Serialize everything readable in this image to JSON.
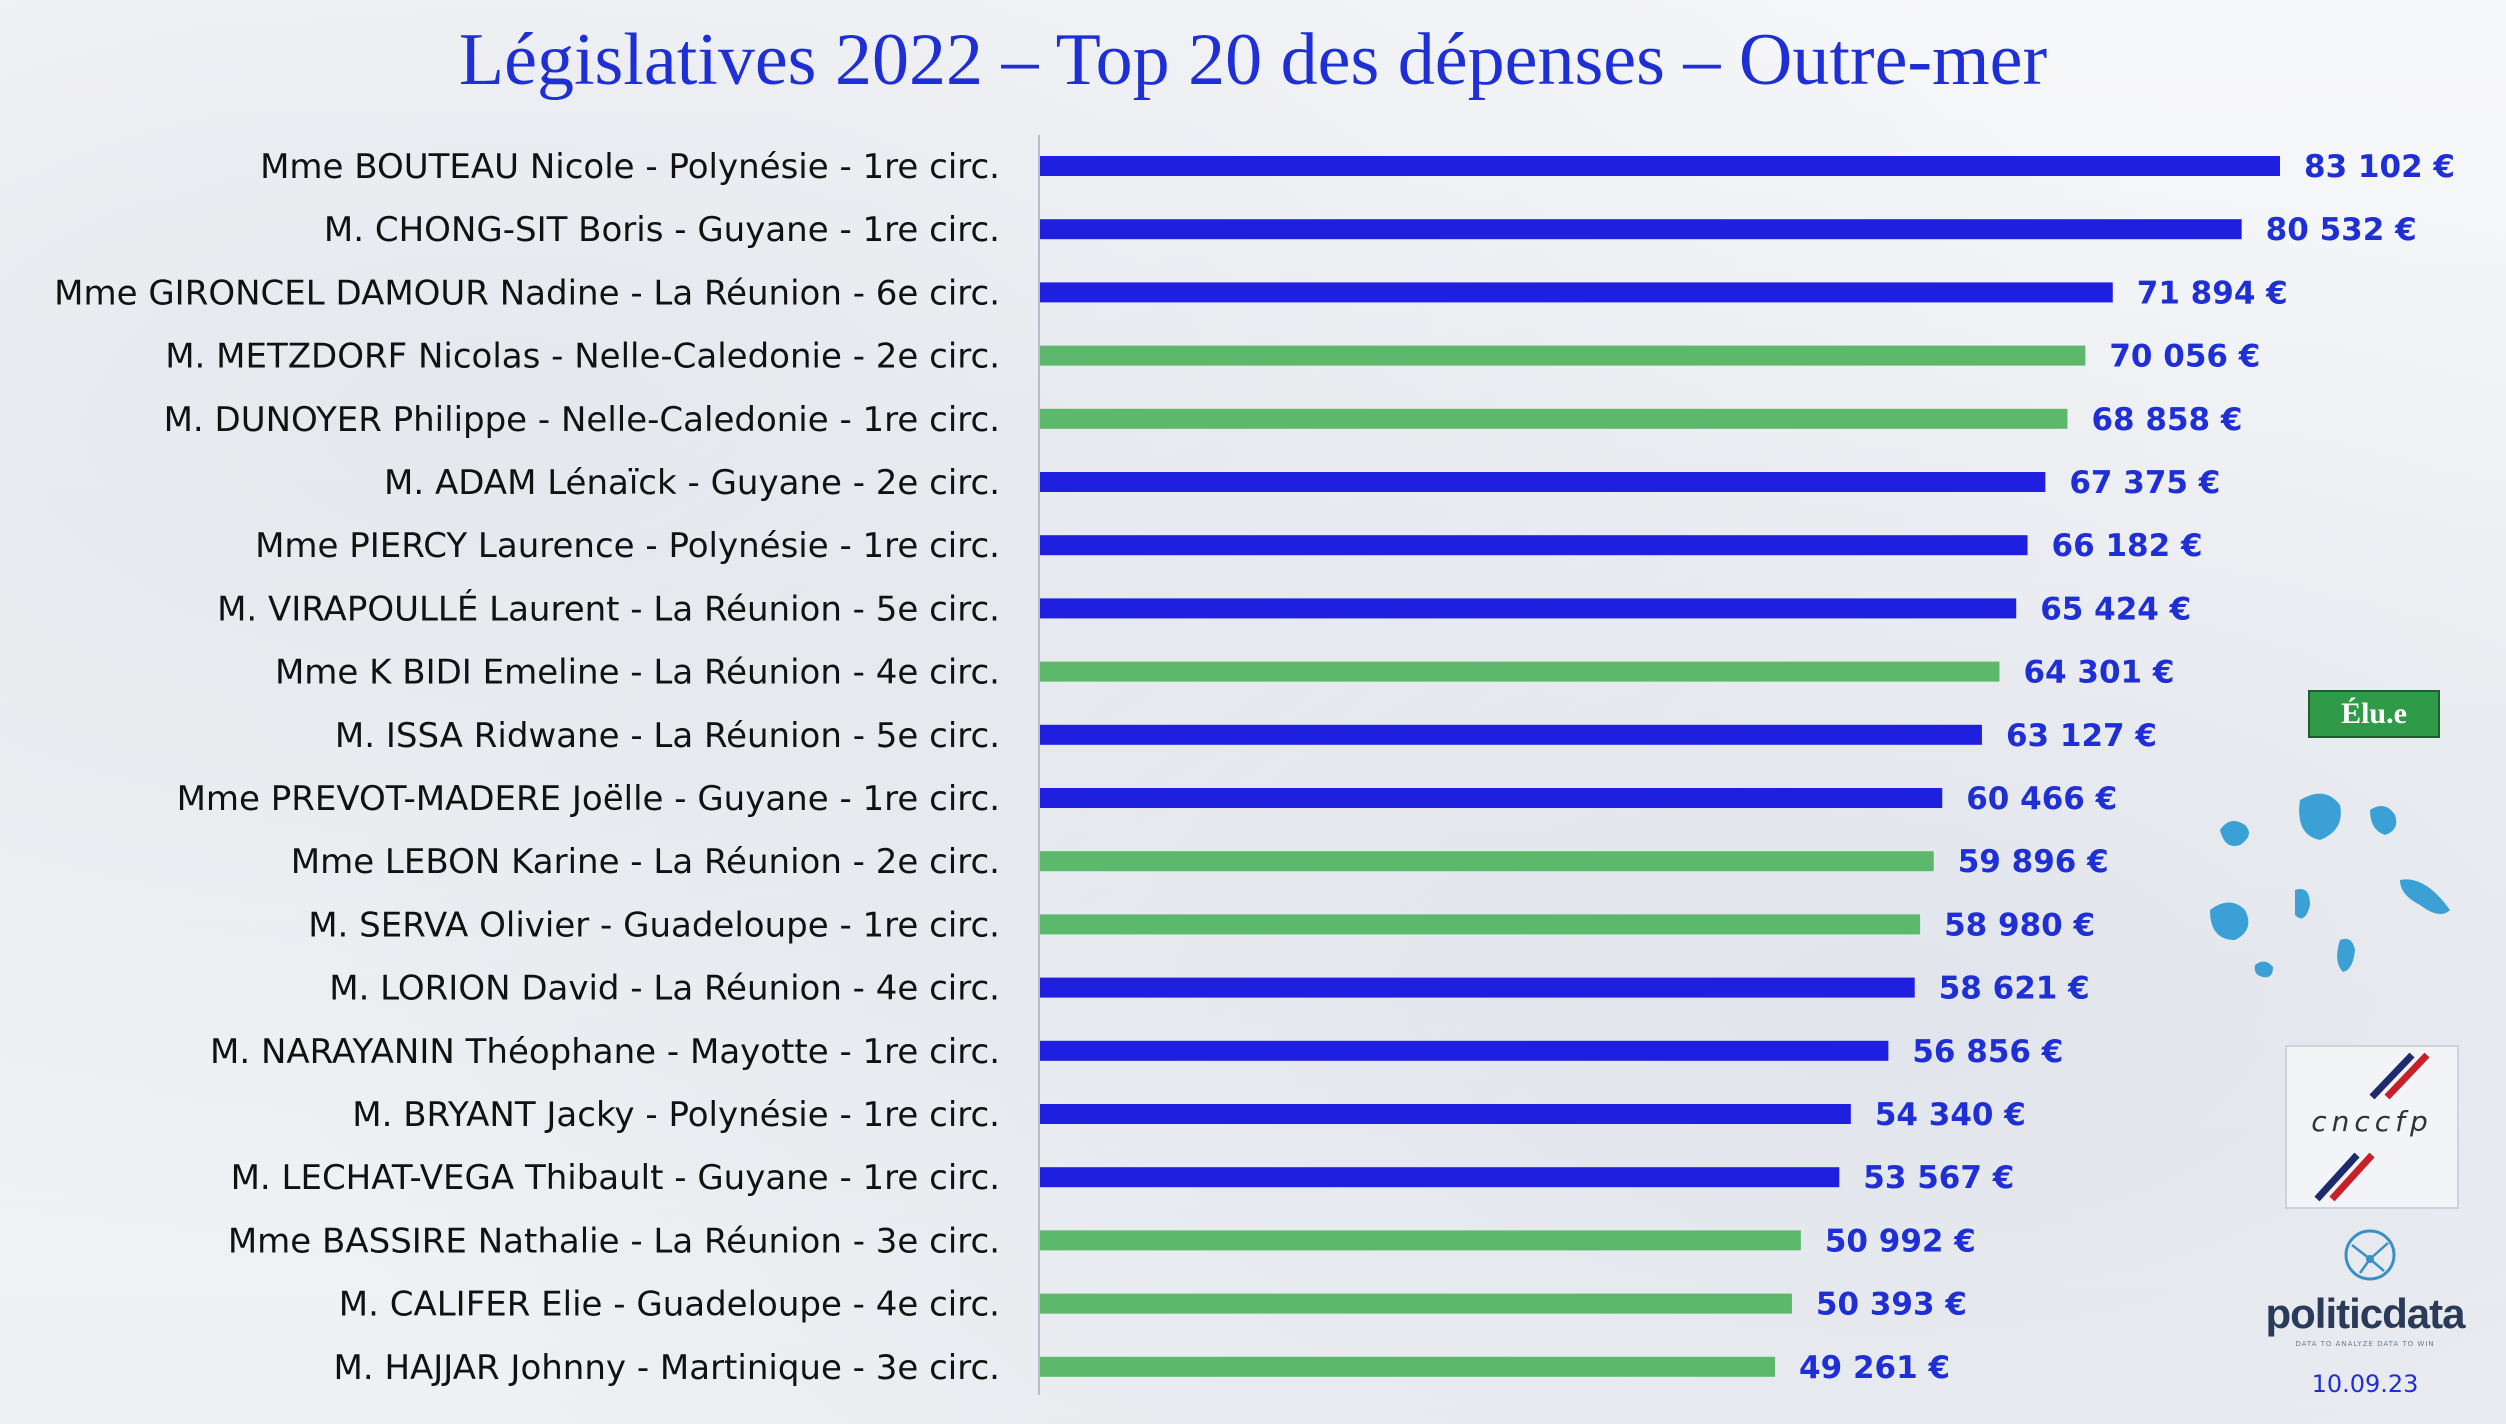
{
  "title": "Législatives 2022 – Top 20 des dépenses – Outre-mer",
  "legend_label": "Élu.e",
  "logos": {
    "cnccfp": "cnccfp",
    "politicdata": "politicdata",
    "politicdata_tagline": "DATA TO ANALYZE DATA TO WIN"
  },
  "date": "10.09.23",
  "colors": {
    "not_elected": "#1f1fe0",
    "elected": "#5cb86a",
    "value_text": "#1f2fd6",
    "title": "#1f2fd6"
  },
  "chart_data": {
    "type": "bar",
    "orientation": "horizontal",
    "title": "Législatives 2022 – Top 20 des dépenses – Outre-mer",
    "xlim": [
      0,
      83102
    ],
    "grid": false,
    "legend_position": "right",
    "categories": [
      "Mme BOUTEAU Nicole -  Polynésie - 1re circ.",
      "M. CHONG-SIT Boris -  Guyane - 1re circ.",
      "Mme GIRONCEL DAMOUR Nadine -  La Réunion - 6e circ.",
      "M. METZDORF Nicolas -  Nelle-Caledonie - 2e circ.",
      "M. DUNOYER Philippe -  Nelle-Caledonie - 1re circ.",
      "M. ADAM Lénaïck -  Guyane - 2e circ.",
      "Mme PIERCY Laurence -  Polynésie - 1re circ.",
      "M. VIRAPOULLÉ Laurent -  La Réunion - 5e circ.",
      "Mme K BIDI Emeline -  La Réunion - 4e circ.",
      "M. ISSA Ridwane -  La Réunion - 5e circ.",
      "Mme PREVOT-MADERE Joëlle -  Guyane - 1re circ.",
      "Mme LEBON Karine -  La Réunion - 2e circ.",
      "M. SERVA Olivier -  Guadeloupe - 1re circ.",
      "M. LORION David -  La Réunion - 4e circ.",
      "M. NARAYANIN Théophane -  Mayotte - 1re circ.",
      "M. BRYANT Jacky -  Polynésie - 1re circ.",
      "M. LECHAT-VEGA Thibault -  Guyane - 1re circ.",
      "Mme BASSIRE Nathalie  -  La Réunion - 3e circ.",
      "M. CALIFER Elie -  Guadeloupe - 4e circ.",
      "M. HAJJAR Johnny -  Martinique - 3e circ."
    ],
    "values": [
      83102,
      80532,
      71894,
      70056,
      68858,
      67375,
      66182,
      65424,
      64301,
      63127,
      60466,
      59896,
      58980,
      58621,
      56856,
      54340,
      53567,
      50992,
      50393,
      49261
    ],
    "value_labels": [
      "83 102 €",
      "80 532 €",
      "71 894 €",
      "70 056 €",
      "68 858 €",
      "67 375 €",
      "66 182 €",
      "65 424 €",
      "64 301 €",
      "63 127 €",
      "60 466 €",
      "59 896 €",
      "58 980 €",
      "58 621 €",
      "56 856 €",
      "54 340 €",
      "53 567 €",
      "50 992 €",
      "50 393 €",
      "49 261 €"
    ],
    "elected": [
      false,
      false,
      false,
      true,
      true,
      false,
      false,
      false,
      true,
      false,
      false,
      true,
      true,
      false,
      false,
      false,
      false,
      true,
      true,
      true
    ]
  }
}
